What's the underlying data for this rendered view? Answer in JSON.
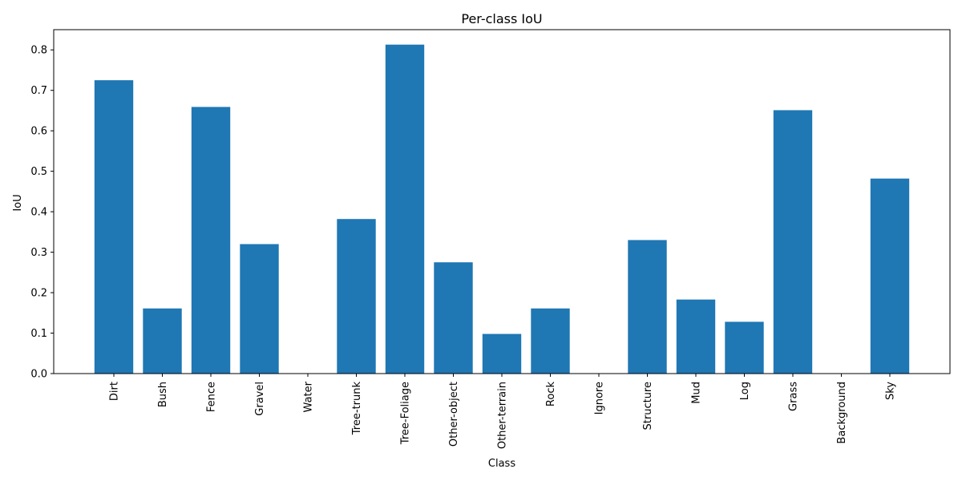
{
  "chart_data": {
    "type": "bar",
    "title": "Per-class IoU",
    "xlabel": "Class",
    "ylabel": "IoU",
    "categories": [
      "Dirt",
      "Bush",
      "Fence",
      "Gravel",
      "Water",
      "Tree-trunk",
      "Tree-Foliage",
      "Other-object",
      "Other-terrain",
      "Rock",
      "Ignore",
      "Structure",
      "Mud",
      "Log",
      "Grass",
      "Background",
      "Sky"
    ],
    "values": [
      0.725,
      0.161,
      0.659,
      0.32,
      0.0,
      0.382,
      0.813,
      0.275,
      0.098,
      0.161,
      0.0,
      0.33,
      0.183,
      0.128,
      0.651,
      0.0,
      0.482
    ],
    "ylim": [
      0,
      0.85
    ],
    "yticks": [
      "0.0",
      "0.1",
      "0.2",
      "0.3",
      "0.4",
      "0.5",
      "0.6",
      "0.7",
      "0.8"
    ],
    "color": "#1f77b4",
    "grid": false,
    "legend": "none"
  }
}
